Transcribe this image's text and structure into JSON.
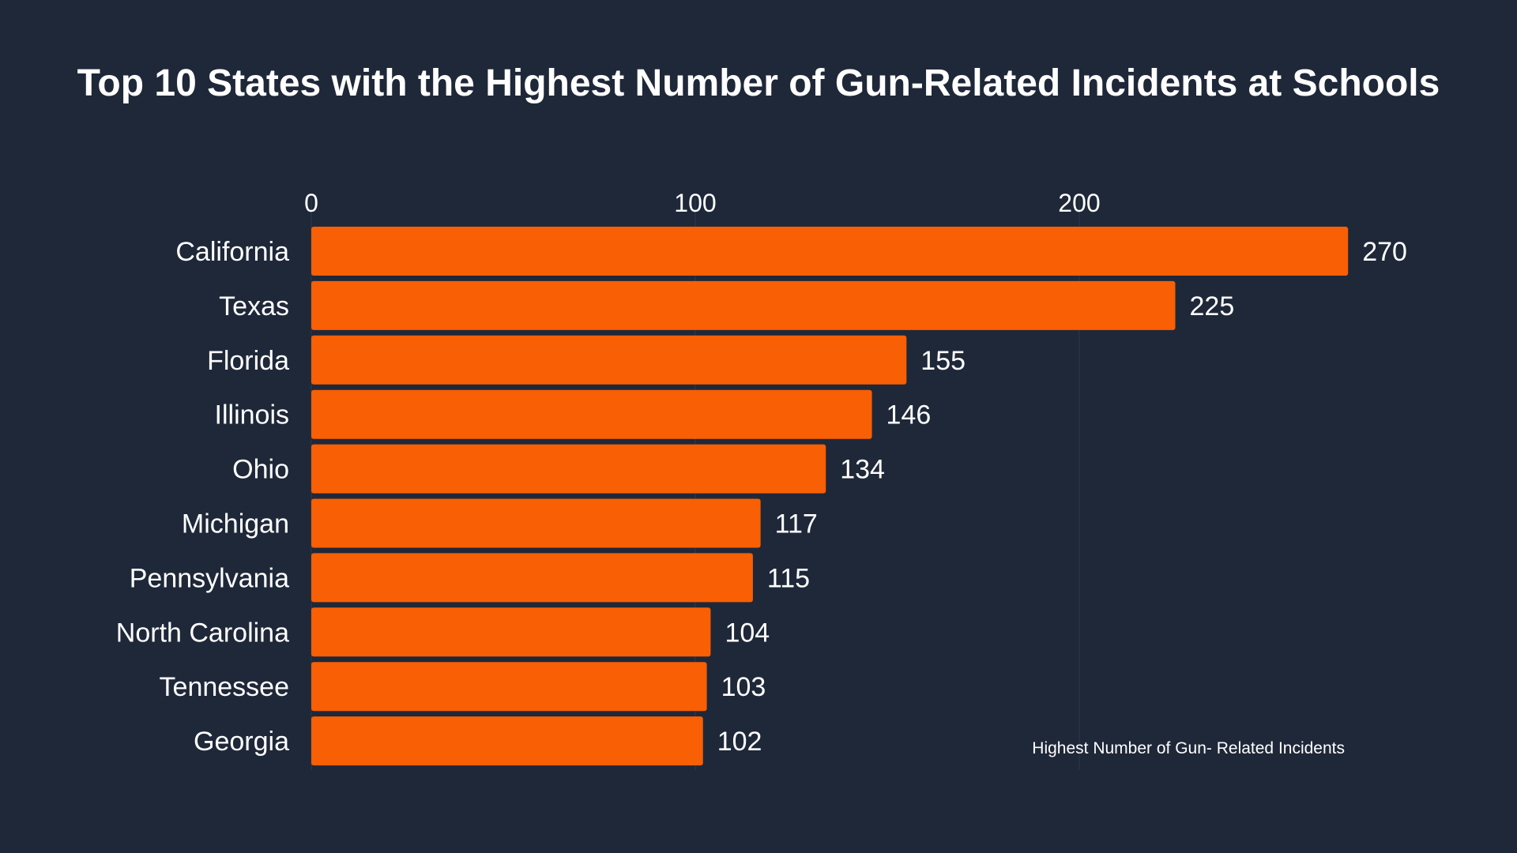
{
  "chart_data": {
    "type": "bar",
    "orientation": "horizontal",
    "title": "Top 10 States with the Highest Number of Gun-Related Incidents at Schools",
    "categories": [
      "California",
      "Texas",
      "Florida",
      "Illinois",
      "Ohio",
      "Michigan",
      "Pennsylvania",
      "North Carolina",
      "Tennessee",
      "Georgia"
    ],
    "series": [
      {
        "name": "Highest Number of Gun- Related Incidents",
        "values": [
          270,
          225,
          155,
          146,
          134,
          117,
          115,
          104,
          103,
          102
        ]
      }
    ],
    "x_ticks": [
      "0",
      "100",
      "200"
    ],
    "xlim": [
      0,
      270
    ],
    "xaxis_position": "top",
    "grid": true,
    "legend_position": "bottom-right",
    "bar_color": "#f95f04",
    "background_color": "#1f2839",
    "grid_color": "#2f394b"
  }
}
